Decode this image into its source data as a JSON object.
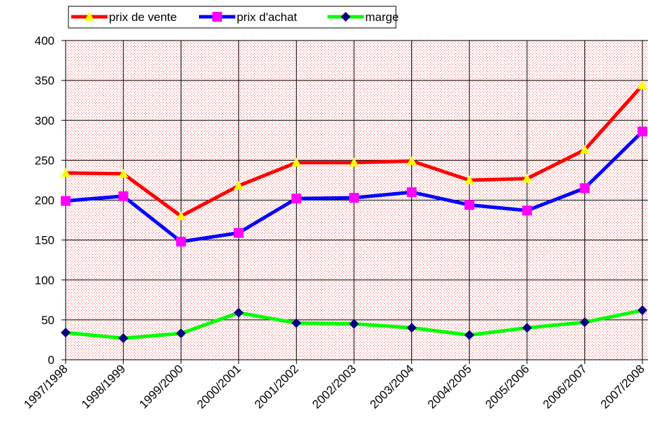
{
  "chart_data": {
    "type": "line",
    "categories": [
      "1997/1998",
      "1998/1999",
      "1999/2000",
      "2000/2001",
      "2001/2002",
      "2002/2003",
      "2003/2004",
      "2004/2005",
      "2005/2006",
      "2006/2007",
      "2007/2008"
    ],
    "series": [
      {
        "name": "prix de vente",
        "color": "#ff0000",
        "marker": "triangle",
        "marker_color": "#ffff00",
        "values": [
          234,
          233,
          180,
          218,
          247,
          247,
          249,
          225,
          227,
          263,
          344
        ]
      },
      {
        "name": "prix d'achat",
        "color": "#0000ff",
        "marker": "square",
        "marker_color": "#ff00ff",
        "values": [
          199,
          205,
          148,
          159,
          202,
          203,
          210,
          194,
          187,
          215,
          286
        ]
      },
      {
        "name": "marge",
        "color": "#00ff00",
        "marker": "diamond",
        "marker_color": "#000080",
        "values": [
          34,
          27,
          33,
          59,
          46,
          45,
          40,
          31,
          40,
          47,
          62
        ]
      }
    ],
    "ylim": [
      0,
      400
    ],
    "yticks": [
      0,
      50,
      100,
      150,
      200,
      250,
      300,
      350,
      400
    ],
    "grid": true
  }
}
